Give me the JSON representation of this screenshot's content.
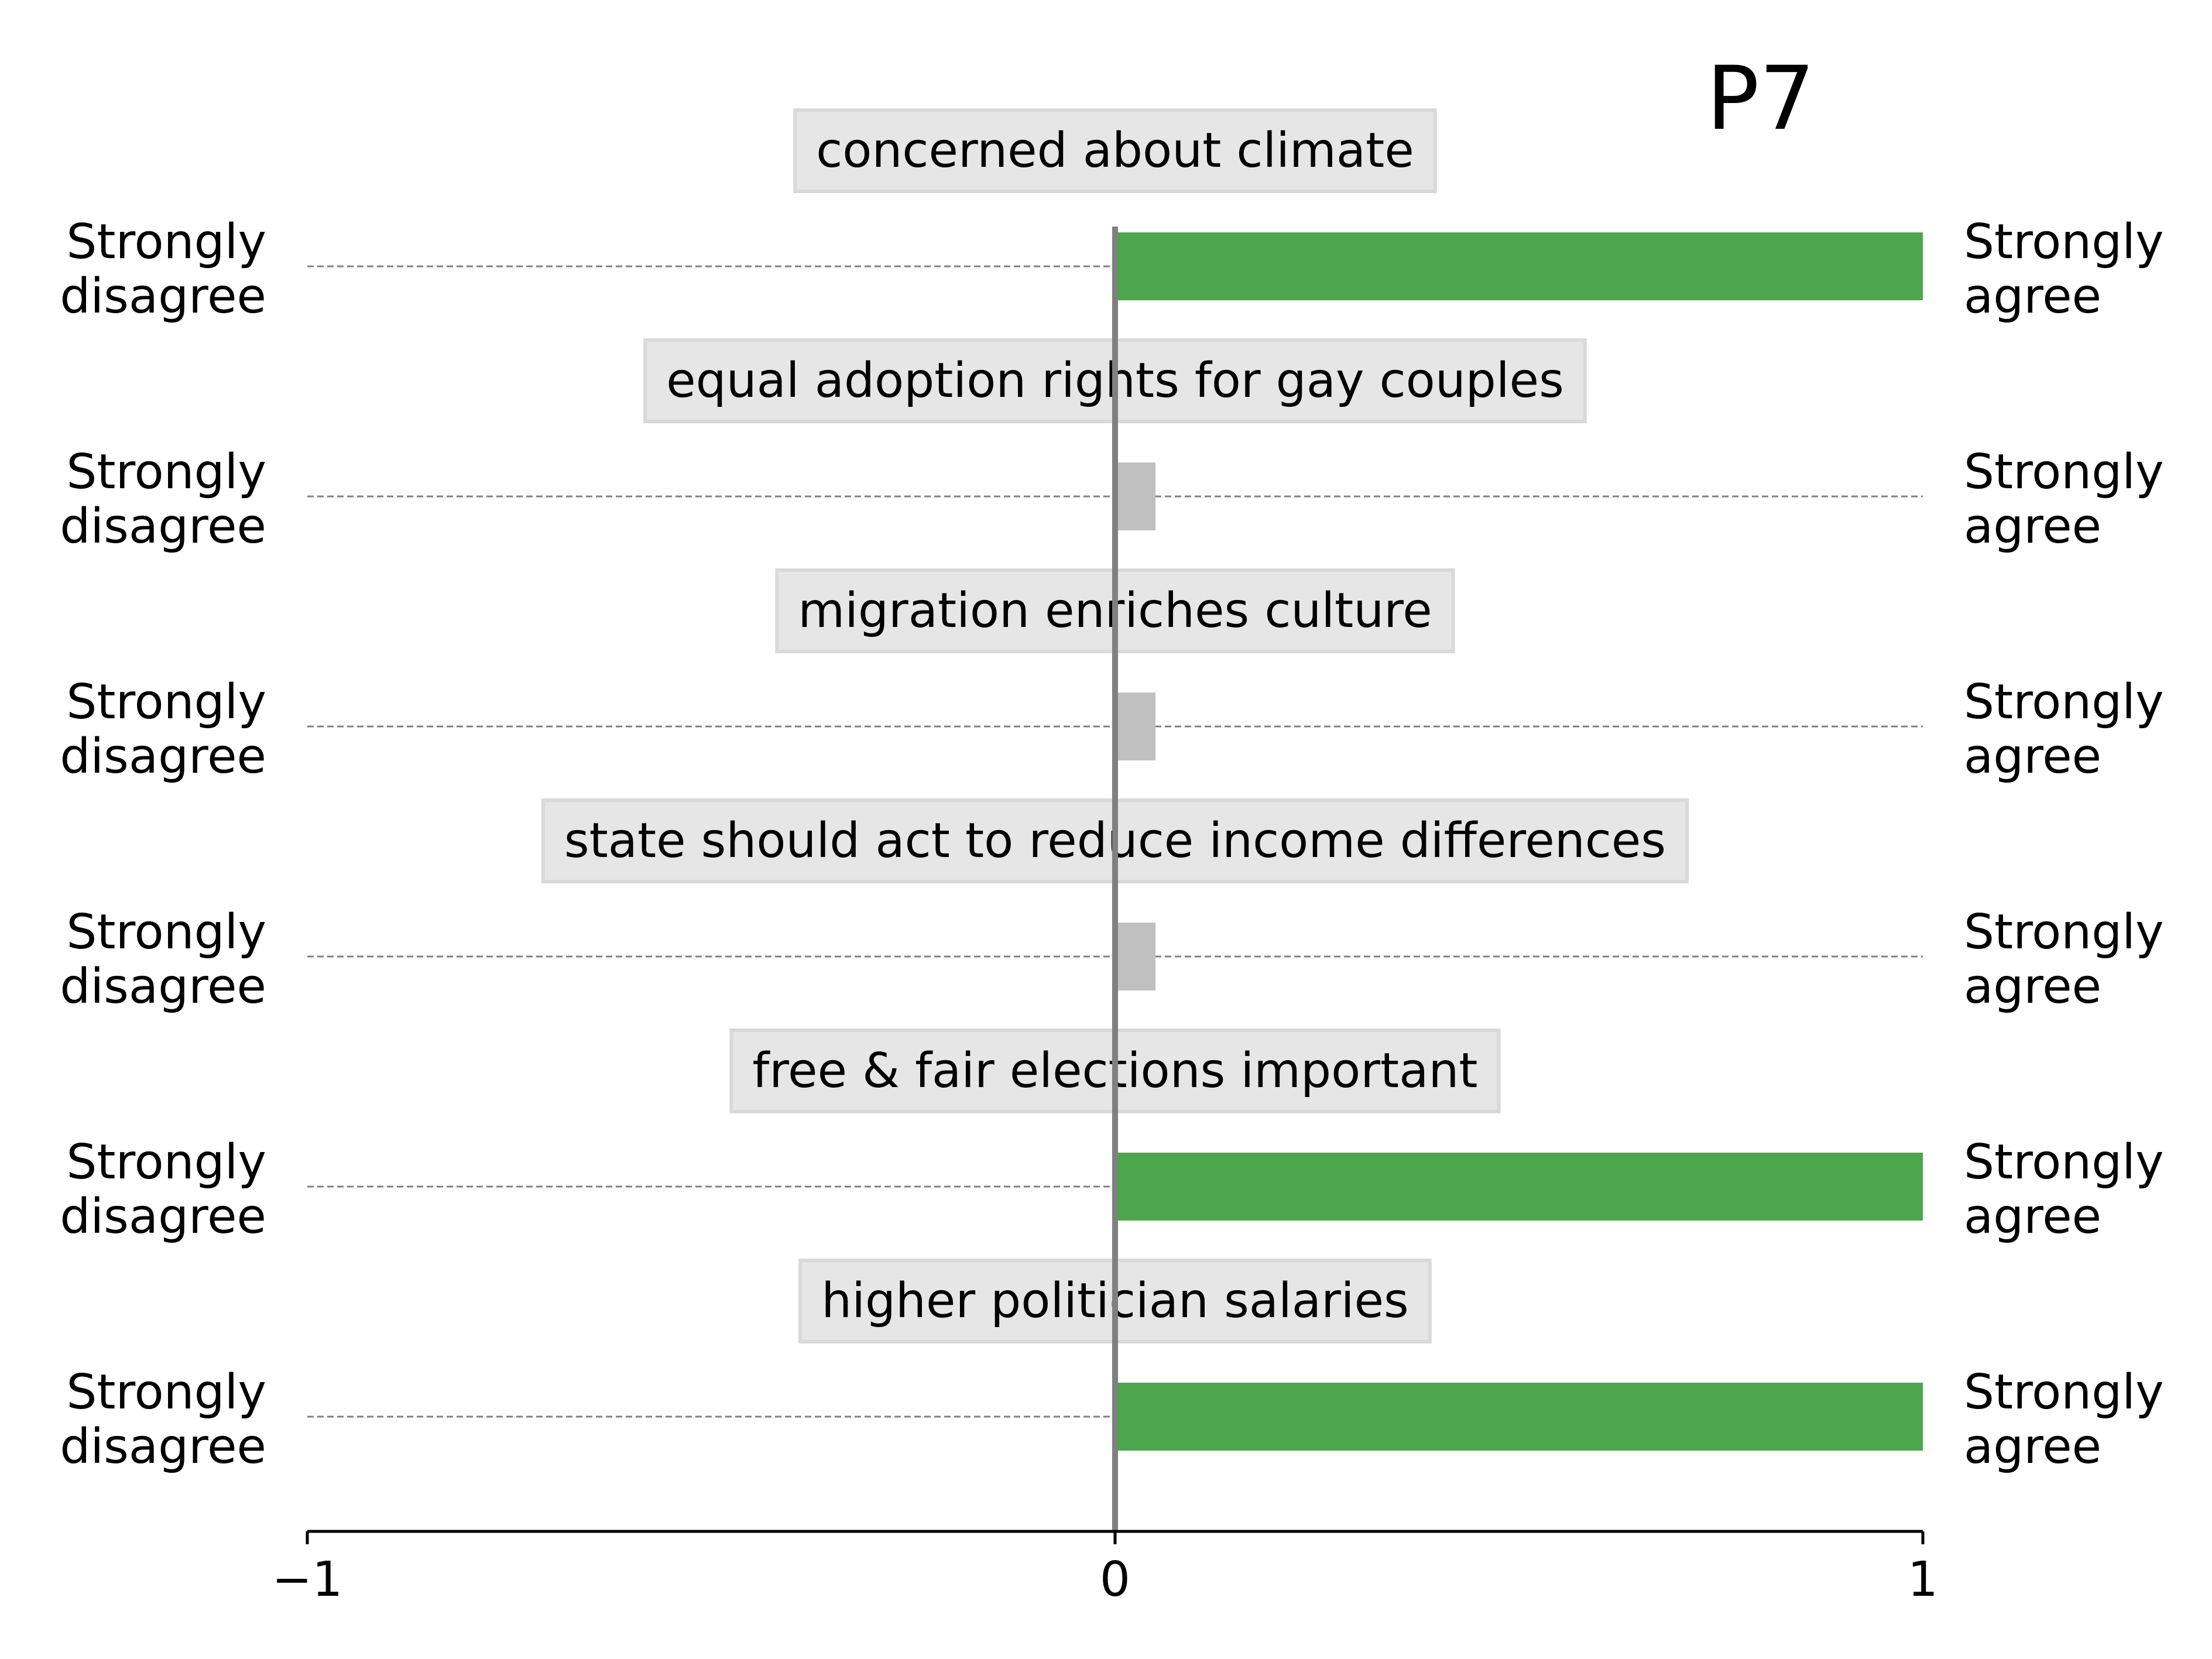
{
  "chart_data": {
    "type": "bar",
    "orientation": "horizontal",
    "title": "P7",
    "xlim": [
      -1,
      1
    ],
    "xticks": [
      {
        "value": -1,
        "label": "−1"
      },
      {
        "value": 0,
        "label": "0"
      },
      {
        "value": 1,
        "label": "1"
      }
    ],
    "left_label": "Strongly\ndisagree",
    "right_label": "Strongly\nagree",
    "rows": [
      {
        "label": "concerned about climate",
        "value": 1.0,
        "color": "#4ca64c"
      },
      {
        "label": "equal adoption rights for gay couples",
        "value": 0.05,
        "color": "#c0c0c0"
      },
      {
        "label": "migration enriches culture",
        "value": 0.05,
        "color": "#c0c0c0"
      },
      {
        "label": "state should act to reduce income differences",
        "value": 0.05,
        "color": "#c0c0c0"
      },
      {
        "label": "free & fair elections important",
        "value": 1.0,
        "color": "#4ca64c"
      },
      {
        "label": "higher politician salaries",
        "value": 1.0,
        "color": "#4ca64c"
      }
    ],
    "grid": false,
    "legend": "none"
  }
}
